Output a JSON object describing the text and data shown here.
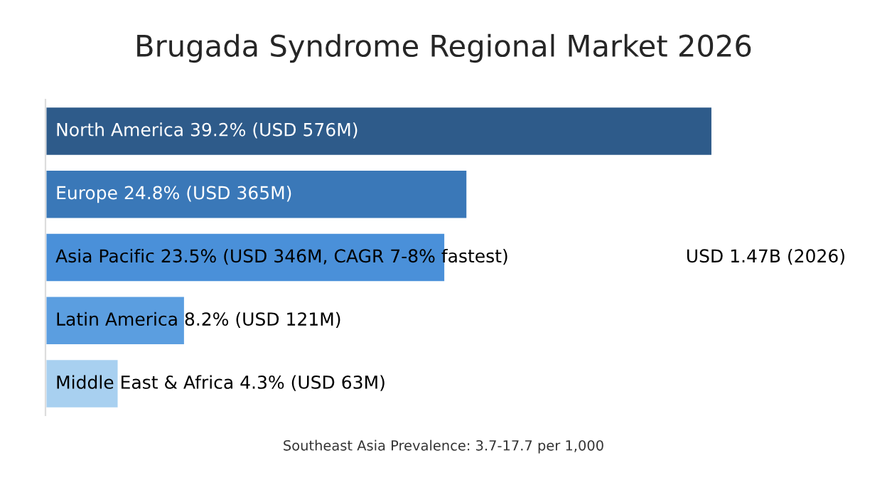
{
  "chart_data": {
    "type": "bar",
    "orientation": "horizontal",
    "title": "Brugada Syndrome Regional Market 2026",
    "categories": [
      null,
      null,
      null,
      null,
      null
    ],
    "values": [
      39.2,
      24.8,
      23.5,
      8.2,
      4.3
    ],
    "colors": [
      "#2e5b8a",
      "#3a78b8",
      "#4a90d9",
      "#5b9ee0",
      "#a8d0f0"
    ],
    "value_labels": [
      "North America 39.2% (USD 576M)",
      "Europe 24.8% (USD 365M)",
      "Asia Pacific 23.5% (USD 346M, CAGR 7-8% fastest)",
      "Latin America 8.2% (USD 121M)",
      "Middle East & Africa 4.3% (USD 63M)"
    ],
    "annotations": [
      "USD 1.47B (2026)",
      "Southeast Asia Prevalence: 3.7-17.7 per 1,000"
    ]
  }
}
